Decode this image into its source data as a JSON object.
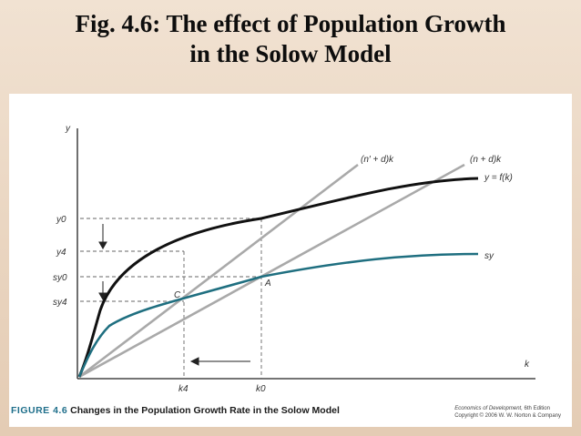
{
  "title": {
    "line1": "Fig. 4.6: The effect of Population Growth",
    "line2": "in the Solow Model"
  },
  "diagram": {
    "axis_y_label": "y",
    "axis_x_label": "k",
    "curve_f_label": "y = f(k)",
    "curve_sy_label": "sy",
    "ray_n_prime_label": "(n′ + d)k",
    "ray_n_label": "(n + d)k",
    "point_a_label": "A",
    "point_c_label": "C",
    "y_ticks": {
      "y0": "y0",
      "y4": "y4",
      "sy0": "sy0",
      "sy4": "sy4"
    },
    "x_ticks": {
      "k4": "k4",
      "k0": "k0"
    },
    "colors": {
      "f_curve": "#111111",
      "sy_curve": "#1f6f80",
      "rays": "#a9a9a9"
    }
  },
  "caption": {
    "figure_label": "FIGURE 4.6",
    "text": "Changes in the Population Growth Rate in the Solow Model"
  },
  "credit": {
    "book": "Economics of Development,",
    "edition": " 6th Edition",
    "copyright": "Copyright © 2006 W. W. Norton & Company"
  }
}
